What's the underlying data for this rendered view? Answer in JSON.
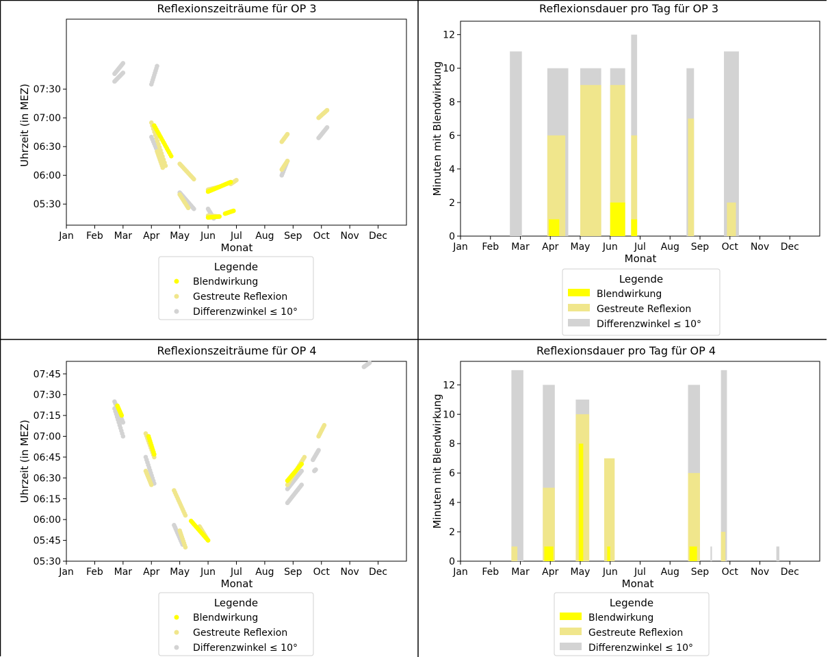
{
  "chart_data": [
    {
      "type": "scatter",
      "title": "Reflexionszeiträume für OP 3",
      "xlabel": "Monat",
      "ylabel": "Uhrzeit (in MEZ)",
      "x_ticks": [
        "Jan",
        "Feb",
        "Mar",
        "Apr",
        "May",
        "Jun",
        "Jul",
        "Aug",
        "Sep",
        "Oct",
        "Nov",
        "Dec"
      ],
      "xlim": [
        1,
        13
      ],
      "y_ticks": [
        "05:30",
        "06:00",
        "06:30",
        "07:00",
        "07:30"
      ],
      "ylim_minutes": [
        308,
        523
      ],
      "legend": {
        "title": "Legende",
        "placement": "below",
        "items": [
          {
            "label": "Blendwirkung",
            "color": "#ffff00"
          },
          {
            "label": "Gestreute Reflexion",
            "color": "#f0e68c"
          },
          {
            "label": "Differenzwinkel ≤  10°",
            "color": "#d3d3d3"
          }
        ]
      },
      "series": [
        {
          "name": "Differenzwinkel ≤  10°",
          "color": "#d3d3d3",
          "segments": [
            [
              [
                2.7,
                458
              ],
              [
                3.0,
                467
              ]
            ],
            [
              [
                2.7,
                466
              ],
              [
                3.0,
                477
              ]
            ],
            [
              [
                4.0,
                455
              ],
              [
                4.2,
                474
              ]
            ],
            [
              [
                4.0,
                400
              ],
              [
                4.4,
                372
              ]
            ],
            [
              [
                5.0,
                342
              ],
              [
                5.5,
                325
              ]
            ],
            [
              [
                6.0,
                325
              ],
              [
                6.2,
                315
              ]
            ],
            [
              [
                8.6,
                360
              ],
              [
                8.8,
                375
              ]
            ],
            [
              [
                9.9,
                399
              ],
              [
                10.2,
                410
              ]
            ]
          ]
        },
        {
          "name": "Gestreute Reflexion",
          "color": "#f0e68c",
          "segments": [
            [
              [
                4.0,
                415
              ],
              [
                4.5,
                370
              ]
            ],
            [
              [
                4.2,
                385
              ],
              [
                4.4,
                368
              ]
            ],
            [
              [
                5.0,
                372
              ],
              [
                5.5,
                356
              ]
            ],
            [
              [
                5.0,
                340
              ],
              [
                5.3,
                326
              ]
            ],
            [
              [
                6.0,
                345
              ],
              [
                6.4,
                348
              ]
            ],
            [
              [
                6.0,
                318
              ],
              [
                6.4,
                317
              ]
            ],
            [
              [
                6.8,
                351
              ],
              [
                7.0,
                355
              ]
            ],
            [
              [
                8.6,
                366
              ],
              [
                8.8,
                375
              ]
            ],
            [
              [
                8.6,
                395
              ],
              [
                8.8,
                403
              ]
            ],
            [
              [
                9.9,
                420
              ],
              [
                10.2,
                428
              ]
            ]
          ]
        },
        {
          "name": "Blendwirkung",
          "color": "#ffff00",
          "segments": [
            [
              [
                4.1,
                412
              ],
              [
                4.7,
                380
              ]
            ],
            [
              [
                6.0,
                343
              ],
              [
                6.8,
                353
              ]
            ],
            [
              [
                6.0,
                316
              ],
              [
                6.4,
                317
              ]
            ],
            [
              [
                6.6,
                320
              ],
              [
                6.9,
                323
              ]
            ]
          ]
        }
      ]
    },
    {
      "type": "bar",
      "title": "Reflexionsdauer pro Tag für OP 3",
      "xlabel": "Monat",
      "ylabel": "Minuten mit Blendwirkung",
      "x_ticks": [
        "Jan",
        "Feb",
        "Mar",
        "Apr",
        "May",
        "Jun",
        "Jul",
        "Aug",
        "Sep",
        "Oct",
        "Nov",
        "Dec"
      ],
      "xlim": [
        1,
        13
      ],
      "ylim": [
        0,
        12.8
      ],
      "y_ticks": [
        0,
        2,
        4,
        6,
        8,
        10,
        12
      ],
      "legend": {
        "title": "Legende",
        "placement": "below",
        "items": [
          {
            "label": "Blendwirkung",
            "color": "#ffff00"
          },
          {
            "label": "Gestreute Reflexion",
            "color": "#f0e68c"
          },
          {
            "label": "Differenzwinkel ≤  10°",
            "color": "#d3d3d3"
          }
        ]
      },
      "series": [
        {
          "name": "Differenzwinkel ≤  10°",
          "color": "#d3d3d3",
          "ranges": [
            [
              2.65,
              3.05,
              11
            ],
            [
              3.9,
              4.6,
              10
            ],
            [
              5.0,
              5.7,
              10
            ],
            [
              6.0,
              6.5,
              10
            ],
            [
              6.7,
              6.9,
              12
            ],
            [
              8.55,
              8.8,
              10
            ],
            [
              9.8,
              10.3,
              11
            ]
          ]
        },
        {
          "name": "Gestreute Reflexion",
          "color": "#f0e68c",
          "ranges": [
            [
              3.9,
              4.5,
              6
            ],
            [
              5.0,
              5.7,
              9
            ],
            [
              6.0,
              6.5,
              9
            ],
            [
              6.7,
              6.9,
              6
            ],
            [
              8.6,
              8.8,
              7
            ],
            [
              9.9,
              10.2,
              2
            ]
          ]
        },
        {
          "name": "Blendwirkung",
          "color": "#ffff00",
          "ranges": [
            [
              3.95,
              4.3,
              1
            ],
            [
              6.0,
              6.5,
              2
            ],
            [
              6.7,
              6.9,
              1
            ]
          ]
        }
      ]
    },
    {
      "type": "scatter",
      "title": "Reflexionszeiträume für OP 4",
      "xlabel": "Monat",
      "ylabel": "Uhrzeit (in MEZ)",
      "x_ticks": [
        "Jan",
        "Feb",
        "Mar",
        "Apr",
        "May",
        "Jun",
        "Jul",
        "Aug",
        "Sep",
        "Oct",
        "Nov",
        "Dec"
      ],
      "xlim": [
        1,
        13
      ],
      "y_ticks": [
        "05:30",
        "05:45",
        "06:00",
        "06:15",
        "06:30",
        "06:45",
        "07:00",
        "07:15",
        "07:30",
        "07:45"
      ],
      "ylim_minutes": [
        330,
        474
      ],
      "legend": {
        "title": "Legende",
        "placement": "below",
        "items": [
          {
            "label": "Blendwirkung",
            "color": "#ffff00"
          },
          {
            "label": "Gestreute Reflexion",
            "color": "#f0e68c"
          },
          {
            "label": "Differenzwinkel ≤  10°",
            "color": "#d3d3d3"
          }
        ]
      },
      "series": [
        {
          "name": "Differenzwinkel ≤  10°",
          "color": "#d3d3d3",
          "segments": [
            [
              [
                2.7,
                445
              ],
              [
                3.0,
                430
              ]
            ],
            [
              [
                2.7,
                440
              ],
              [
                3.0,
                420
              ]
            ],
            [
              [
                3.8,
                405
              ],
              [
                4.1,
                386
              ]
            ],
            [
              [
                4.8,
                356
              ],
              [
                5.1,
                342
              ]
            ],
            [
              [
                8.8,
                372
              ],
              [
                9.3,
                385
              ]
            ],
            [
              [
                8.8,
                382
              ],
              [
                9.3,
                395
              ]
            ],
            [
              [
                9.7,
                403
              ],
              [
                9.9,
                410
              ]
            ],
            [
              [
                9.75,
                395
              ],
              [
                9.8,
                396
              ]
            ],
            [
              [
                11.5,
                470
              ],
              [
                11.7,
                473
              ]
            ]
          ]
        },
        {
          "name": "Gestreute Reflexion",
          "color": "#f0e68c",
          "segments": [
            [
              [
                3.8,
                422
              ],
              [
                4.1,
                405
              ]
            ],
            [
              [
                3.8,
                395
              ],
              [
                4.0,
                385
              ]
            ],
            [
              [
                4.8,
                381
              ],
              [
                5.2,
                363
              ]
            ],
            [
              [
                5.7,
                355
              ],
              [
                6.0,
                345
              ]
            ],
            [
              [
                5.0,
                352
              ],
              [
                5.2,
                340
              ]
            ],
            [
              [
                8.8,
                385
              ],
              [
                9.4,
                405
              ]
            ],
            [
              [
                9.9,
                420
              ],
              [
                10.1,
                428
              ]
            ]
          ]
        },
        {
          "name": "Blendwirkung",
          "color": "#ffff00",
          "segments": [
            [
              [
                3.9,
                420
              ],
              [
                4.1,
                407
              ]
            ],
            [
              [
                5.4,
                359
              ],
              [
                6.0,
                345
              ]
            ],
            [
              [
                8.8,
                388
              ],
              [
                9.3,
                400
              ]
            ],
            [
              [
                2.8,
                442
              ],
              [
                2.95,
                435
              ]
            ]
          ]
        }
      ]
    },
    {
      "type": "bar",
      "title": "Reflexionsdauer pro Tag für OP 4",
      "xlabel": "Monat",
      "ylabel": "Minuten mit Blendwirkung",
      "x_ticks": [
        "Jan",
        "Feb",
        "Mar",
        "Apr",
        "May",
        "Jun",
        "Jul",
        "Aug",
        "Sep",
        "Oct",
        "Nov",
        "Dec"
      ],
      "xlim": [
        1,
        13
      ],
      "ylim": [
        0,
        13.6
      ],
      "y_ticks": [
        0,
        2,
        4,
        6,
        8,
        10,
        12
      ],
      "legend": {
        "title": "Legende",
        "placement": "below",
        "items": [
          {
            "label": "Blendwirkung",
            "color": "#ffff00"
          },
          {
            "label": "Gestreute Reflexion",
            "color": "#f0e68c"
          },
          {
            "label": "Differenzwinkel ≤  10°",
            "color": "#d3d3d3"
          }
        ]
      },
      "series": [
        {
          "name": "Differenzwinkel ≤  10°",
          "color": "#d3d3d3",
          "ranges": [
            [
              2.7,
              3.1,
              13
            ],
            [
              3.75,
              4.15,
              12
            ],
            [
              4.85,
              5.3,
              11
            ],
            [
              8.6,
              9.0,
              12
            ],
            [
              9.7,
              9.9,
              13
            ],
            [
              9.35,
              9.4,
              1
            ],
            [
              11.55,
              11.65,
              1
            ]
          ]
        },
        {
          "name": "Gestreute Reflexion",
          "color": "#f0e68c",
          "ranges": [
            [
              2.7,
              2.9,
              1
            ],
            [
              3.75,
              4.15,
              5
            ],
            [
              4.85,
              5.3,
              10
            ],
            [
              5.8,
              6.15,
              7
            ],
            [
              8.6,
              9.0,
              6
            ],
            [
              9.7,
              9.85,
              2
            ]
          ]
        },
        {
          "name": "Blendwirkung",
          "color": "#ffff00",
          "ranges": [
            [
              3.8,
              4.1,
              1
            ],
            [
              4.95,
              5.1,
              8
            ],
            [
              5.9,
              6.0,
              1
            ],
            [
              8.65,
              8.9,
              1
            ]
          ]
        }
      ]
    }
  ]
}
